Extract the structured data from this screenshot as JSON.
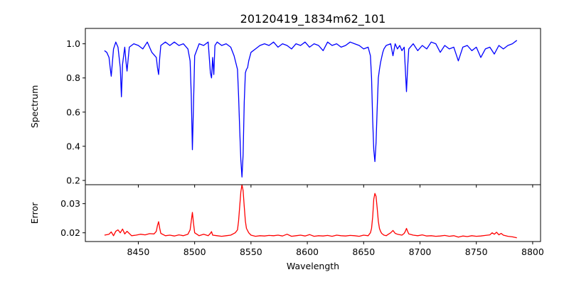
{
  "title": "20120419_1834m62_101",
  "chart_data": [
    {
      "type": "line",
      "panel": "top",
      "ylabel": "Spectrum",
      "xlabel": "",
      "xlim": [
        8403,
        8807
      ],
      "ylim": [
        0.175,
        1.09
      ],
      "x_ticks": [
        8450,
        8500,
        8550,
        8600,
        8650,
        8700,
        8750,
        8800
      ],
      "y_ticks": [
        0.2,
        0.4,
        0.6,
        0.8,
        1.0
      ],
      "y_tick_labels": [
        "0.2",
        "0.4",
        "0.6",
        "0.8",
        "1.0"
      ],
      "show_x_tick_labels": false,
      "grid": false,
      "series": [
        {
          "color": "#0000ff",
          "x": [
            8420,
            8422,
            8424,
            8425,
            8426,
            8428,
            8430,
            8432,
            8434,
            8435,
            8436,
            8438,
            8439,
            8440,
            8442,
            8446,
            8450,
            8454,
            8458,
            8462,
            8466,
            8467,
            8468,
            8469,
            8470,
            8474,
            8478,
            8482,
            8486,
            8490,
            8494,
            8496,
            8497,
            8498,
            8499,
            8500,
            8504,
            8508,
            8512,
            8514,
            8515,
            8516,
            8517,
            8518,
            8520,
            8524,
            8528,
            8532,
            8535,
            8538,
            8539,
            8540,
            8541,
            8542,
            8543,
            8544,
            8545,
            8546,
            8547,
            8548,
            8550,
            8554,
            8558,
            8562,
            8566,
            8570,
            8574,
            8578,
            8582,
            8586,
            8590,
            8594,
            8598,
            8602,
            8606,
            8610,
            8614,
            8618,
            8622,
            8626,
            8630,
            8634,
            8638,
            8642,
            8646,
            8650,
            8654,
            8656,
            8657,
            8658,
            8659,
            8660,
            8661,
            8662,
            8663,
            8664,
            8665,
            8666,
            8667,
            8668,
            8670,
            8674,
            8676,
            8678,
            8680,
            8682,
            8684,
            8686,
            8687,
            8688,
            8689,
            8690,
            8694,
            8698,
            8702,
            8706,
            8710,
            8714,
            8718,
            8722,
            8726,
            8730,
            8734,
            8738,
            8742,
            8746,
            8750,
            8754,
            8758,
            8762,
            8766,
            8770,
            8774,
            8778,
            8782,
            8786
          ],
          "y": [
            0.96,
            0.95,
            0.92,
            0.86,
            0.81,
            0.97,
            1.01,
            0.98,
            0.86,
            0.69,
            0.88,
            0.98,
            0.9,
            0.84,
            0.98,
            1.0,
            0.99,
            0.97,
            1.01,
            0.95,
            0.92,
            0.86,
            0.82,
            0.92,
            0.99,
            1.01,
            0.99,
            1.01,
            0.99,
            1.0,
            0.97,
            0.9,
            0.7,
            0.38,
            0.65,
            0.93,
            1.0,
            0.99,
            1.01,
            0.83,
            0.8,
            0.92,
            0.82,
            0.99,
            1.01,
            0.99,
            1.0,
            0.98,
            0.93,
            0.85,
            0.7,
            0.5,
            0.32,
            0.22,
            0.35,
            0.66,
            0.83,
            0.85,
            0.86,
            0.9,
            0.95,
            0.97,
            0.99,
            1.0,
            0.99,
            1.01,
            0.98,
            1.0,
            0.99,
            0.97,
            1.0,
            0.99,
            1.01,
            0.98,
            1.0,
            0.99,
            0.96,
            1.01,
            0.99,
            1.0,
            0.98,
            0.99,
            1.01,
            1.0,
            0.99,
            0.97,
            0.98,
            0.93,
            0.8,
            0.55,
            0.38,
            0.31,
            0.42,
            0.62,
            0.8,
            0.85,
            0.89,
            0.92,
            0.95,
            0.97,
            0.99,
            1.0,
            0.93,
            1.0,
            0.97,
            0.99,
            0.96,
            0.98,
            0.85,
            0.72,
            0.86,
            0.97,
            1.0,
            0.96,
            0.99,
            0.97,
            1.01,
            1.0,
            0.95,
            0.99,
            0.97,
            0.98,
            0.9,
            0.98,
            0.99,
            0.96,
            0.98,
            0.92,
            0.97,
            0.98,
            0.94,
            0.99,
            0.97,
            0.99,
            1.0,
            1.02
          ]
        }
      ]
    },
    {
      "type": "line",
      "panel": "bottom",
      "ylabel": "Error",
      "xlabel": "Wavelength",
      "xlim": [
        8403,
        8807
      ],
      "ylim": [
        0.017,
        0.0365
      ],
      "x_ticks": [
        8450,
        8500,
        8550,
        8600,
        8650,
        8700,
        8750,
        8800
      ],
      "x_tick_labels": [
        "8450",
        "8500",
        "8550",
        "8600",
        "8650",
        "8700",
        "8750",
        "8800"
      ],
      "y_ticks": [
        0.02,
        0.03
      ],
      "y_tick_labels": [
        "0.02",
        "0.03"
      ],
      "grid": false,
      "series": [
        {
          "color": "#ff0000",
          "x": [
            8420,
            8424,
            8426,
            8428,
            8430,
            8432,
            8434,
            8436,
            8438,
            8440,
            8444,
            8448,
            8452,
            8456,
            8460,
            8464,
            8466,
            8467,
            8468,
            8469,
            8470,
            8474,
            8478,
            8482,
            8486,
            8490,
            8494,
            8496,
            8497,
            8498,
            8499,
            8500,
            8504,
            8508,
            8512,
            8514,
            8515,
            8516,
            8520,
            8524,
            8528,
            8532,
            8536,
            8538,
            8539,
            8540,
            8541,
            8542,
            8543,
            8544,
            8545,
            8546,
            8548,
            8550,
            8554,
            8558,
            8562,
            8566,
            8570,
            8574,
            8578,
            8582,
            8586,
            8590,
            8594,
            8598,
            8602,
            8606,
            8610,
            8614,
            8618,
            8622,
            8626,
            8630,
            8634,
            8638,
            8642,
            8646,
            8650,
            8654,
            8656,
            8657,
            8658,
            8659,
            8660,
            8661,
            8662,
            8663,
            8664,
            8665,
            8666,
            8668,
            8670,
            8672,
            8674,
            8676,
            8678,
            8680,
            8684,
            8686,
            8687,
            8688,
            8689,
            8690,
            8694,
            8698,
            8702,
            8706,
            8710,
            8714,
            8718,
            8722,
            8726,
            8730,
            8734,
            8738,
            8742,
            8746,
            8750,
            8754,
            8758,
            8762,
            8764,
            8766,
            8768,
            8770,
            8772,
            8774,
            8778,
            8782,
            8786
          ],
          "y": [
            0.0192,
            0.0195,
            0.0203,
            0.019,
            0.0205,
            0.021,
            0.02,
            0.0213,
            0.0196,
            0.0205,
            0.019,
            0.0192,
            0.0195,
            0.0193,
            0.0197,
            0.0196,
            0.0205,
            0.0225,
            0.0238,
            0.0215,
            0.0198,
            0.019,
            0.0192,
            0.0189,
            0.0193,
            0.019,
            0.0195,
            0.021,
            0.024,
            0.027,
            0.0232,
            0.02,
            0.019,
            0.0195,
            0.019,
            0.0198,
            0.0204,
            0.0192,
            0.019,
            0.0188,
            0.019,
            0.0192,
            0.02,
            0.021,
            0.024,
            0.029,
            0.034,
            0.0365,
            0.0345,
            0.029,
            0.024,
            0.0215,
            0.02,
            0.0192,
            0.0188,
            0.019,
            0.0189,
            0.0191,
            0.019,
            0.0192,
            0.0189,
            0.0195,
            0.0188,
            0.019,
            0.0192,
            0.0189,
            0.0194,
            0.0188,
            0.019,
            0.0189,
            0.0191,
            0.0188,
            0.0192,
            0.019,
            0.0189,
            0.0191,
            0.019,
            0.0188,
            0.0192,
            0.019,
            0.02,
            0.0215,
            0.0255,
            0.0315,
            0.0335,
            0.0325,
            0.0285,
            0.024,
            0.0215,
            0.0205,
            0.0198,
            0.0192,
            0.019,
            0.0195,
            0.02,
            0.0208,
            0.0198,
            0.0195,
            0.0192,
            0.0198,
            0.0205,
            0.0215,
            0.0205,
            0.0196,
            0.0192,
            0.019,
            0.0193,
            0.0189,
            0.019,
            0.0188,
            0.0189,
            0.0191,
            0.0188,
            0.019,
            0.0185,
            0.0189,
            0.0187,
            0.019,
            0.0188,
            0.0189,
            0.0191,
            0.0193,
            0.02,
            0.0195,
            0.0202,
            0.0193,
            0.0198,
            0.0192,
            0.0188,
            0.0186,
            0.0183
          ]
        }
      ]
    }
  ]
}
